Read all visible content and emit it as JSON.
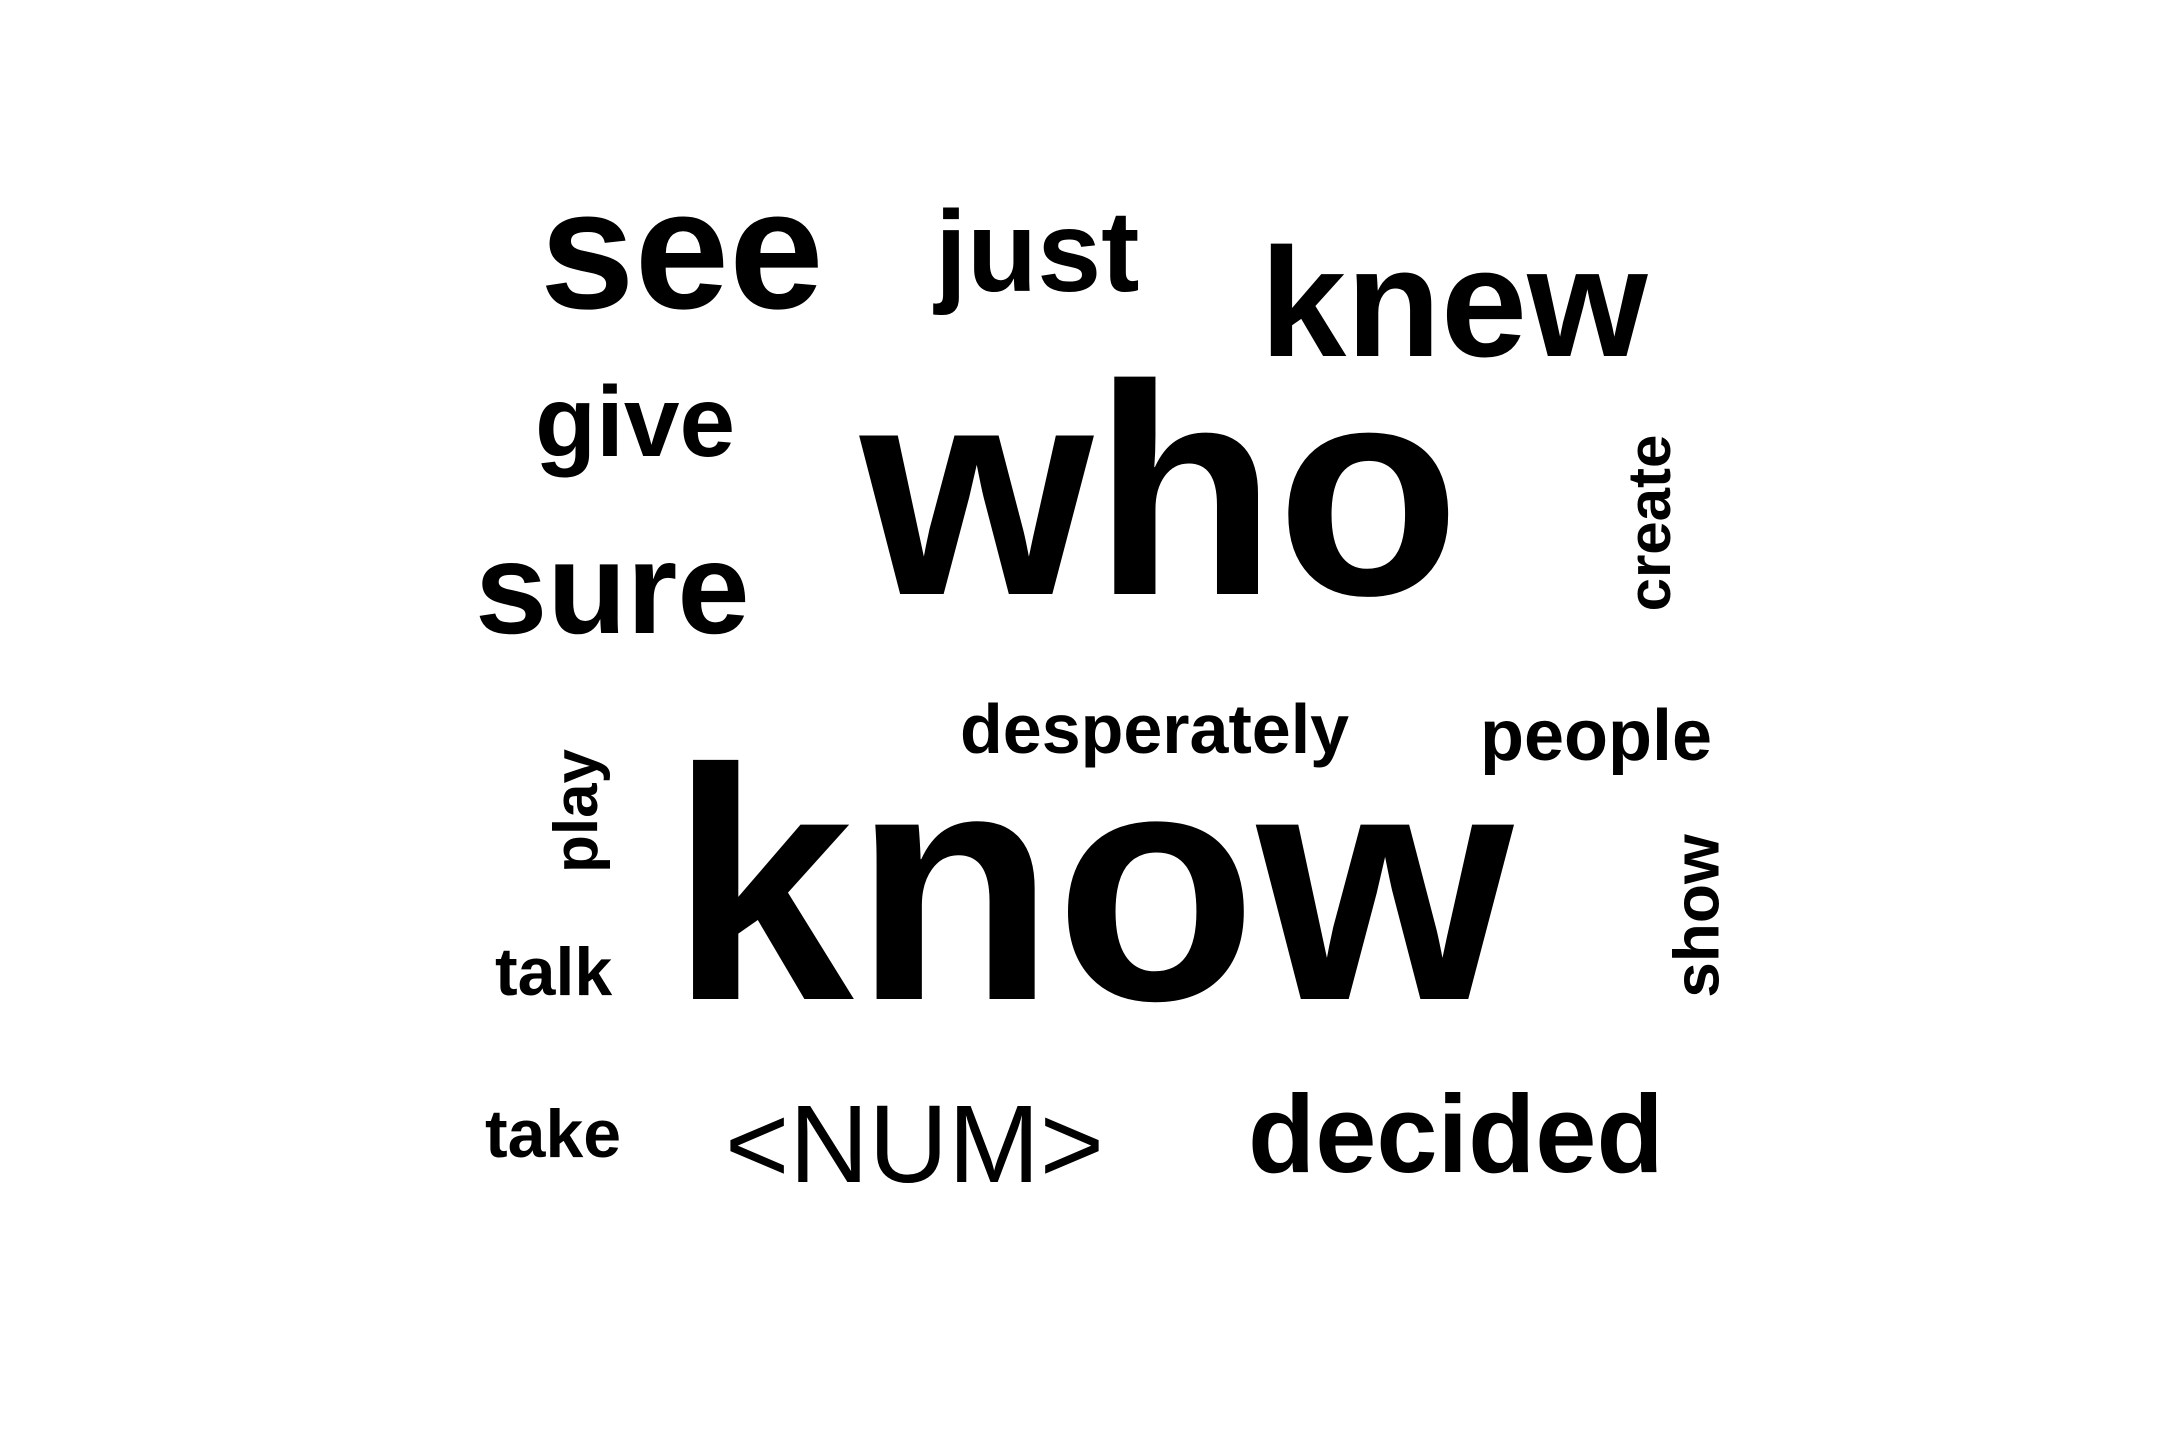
{
  "word_cloud": {
    "text_color": "#000000",
    "background_color": "#ffffff",
    "words": [
      {
        "text": "who"
      },
      {
        "text": "know"
      },
      {
        "text": "knew"
      },
      {
        "text": "see"
      },
      {
        "text": "just"
      },
      {
        "text": "give"
      },
      {
        "text": "sure"
      },
      {
        "text": "create"
      },
      {
        "text": "desperately"
      },
      {
        "text": "people"
      },
      {
        "text": "play"
      },
      {
        "text": "talk"
      },
      {
        "text": "show"
      },
      {
        "text": "take"
      },
      {
        "text": "<NUM>"
      },
      {
        "text": "decided"
      }
    ]
  }
}
